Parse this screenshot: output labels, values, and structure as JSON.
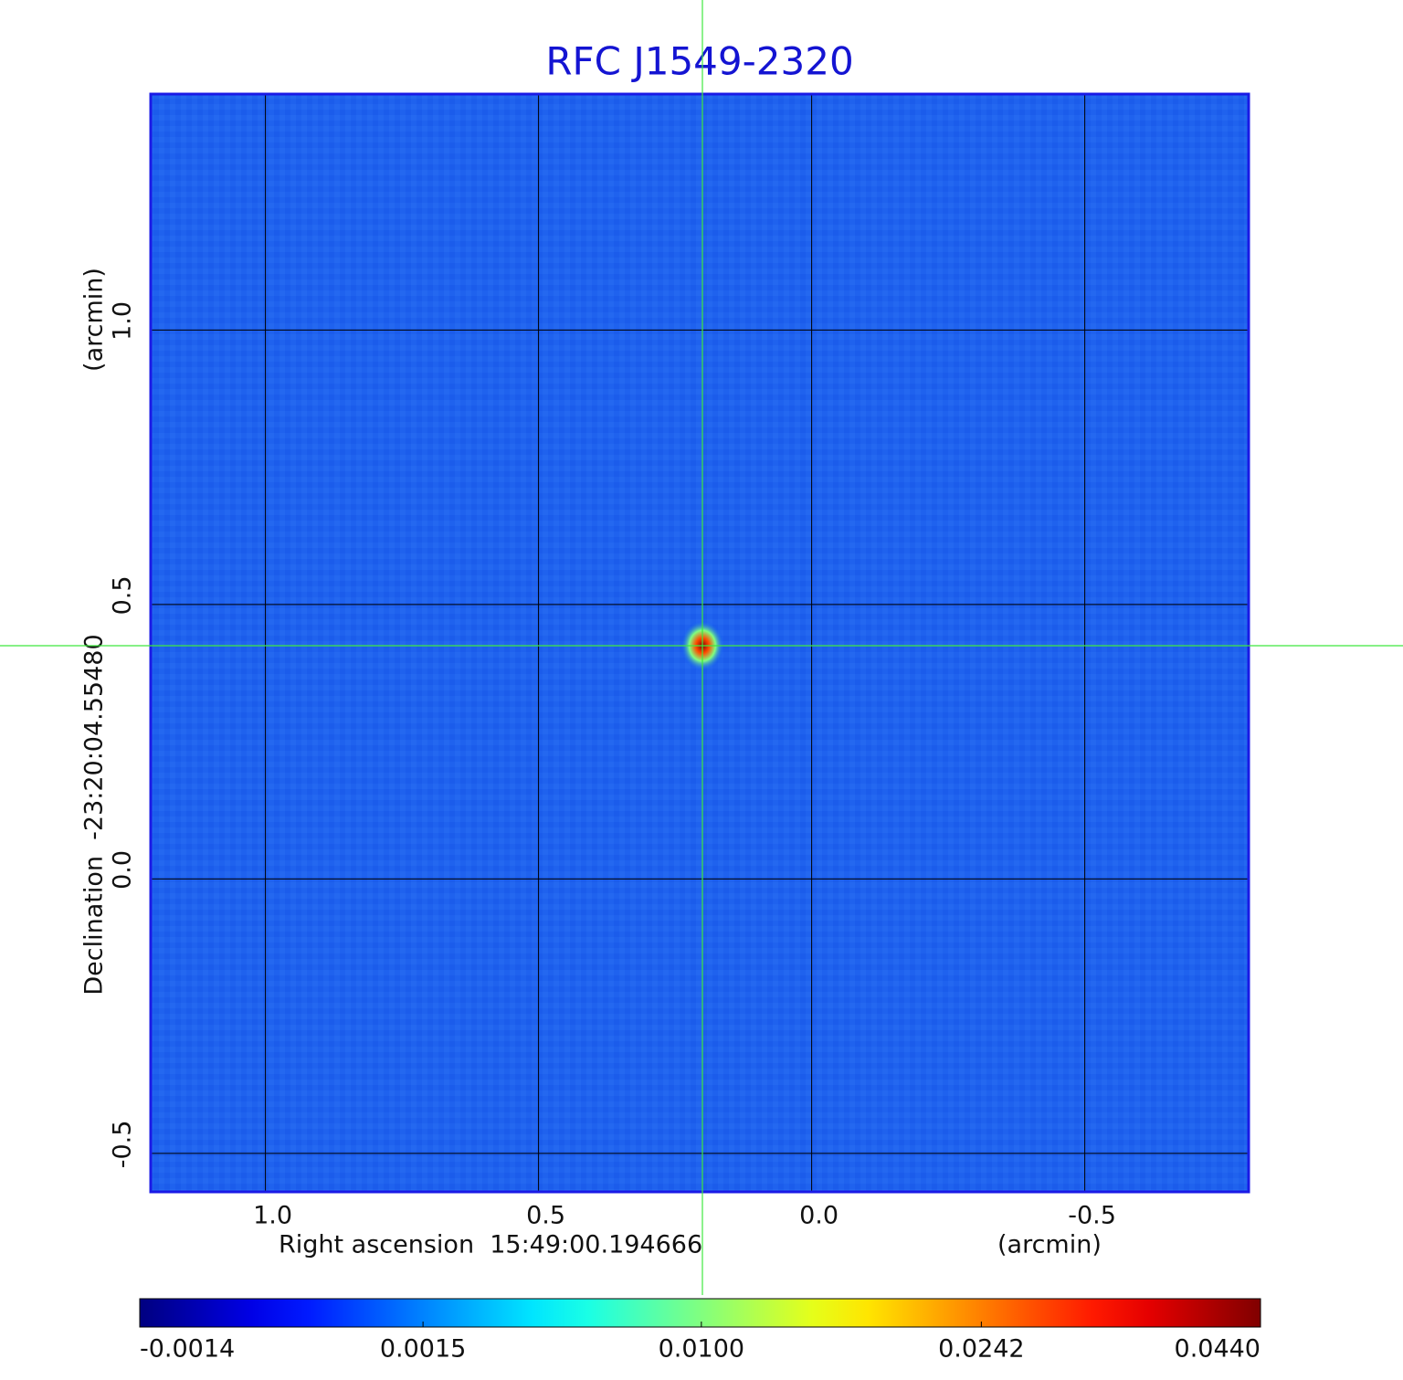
{
  "chart_data": {
    "type": "image",
    "title": "RFC J1549-2320",
    "xlabel": "Right ascension  15:49:00.194666",
    "xunit": "(arcmin)",
    "ylabel": "Declination  -23:20:04.55480",
    "yunit": "(arcmin)",
    "xlim": [
      1.21,
      -0.8
    ],
    "ylim": [
      -0.57,
      1.43
    ],
    "xticks": [
      {
        "value": 1,
        "label": "1.0"
      },
      0.5,
      {
        "value": 0,
        "label": "0.0"
      },
      -0.5
    ],
    "yticks": [
      -0.5,
      {
        "value": 0,
        "label": "0.0"
      },
      0.5,
      {
        "value": 1,
        "label": "1.0"
      }
    ],
    "grid": true,
    "crosshair": {
      "x": 0.2,
      "y": 0.425
    },
    "sources": [
      {
        "x": 0.2,
        "y": 0.425,
        "peak": 0.044
      }
    ],
    "colorbar": {
      "colormap": "jet",
      "scale": "sqrt",
      "lim": [
        -0.0014,
        0.044
      ],
      "ticks": [
        -0.0014,
        0.0015,
        {
          "value": 0.01,
          "label": "0.0100"
        },
        0.0242,
        {
          "value": 0.044,
          "label": "0.0440"
        }
      ]
    }
  }
}
